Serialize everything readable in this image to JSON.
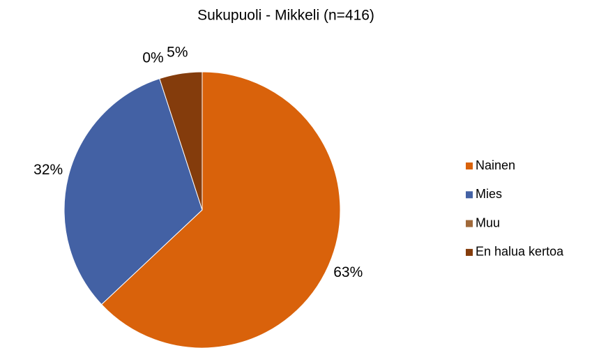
{
  "chart_data": {
    "type": "pie",
    "title": "Sukupuoli - Mikkeli (n=416)",
    "categories": [
      "Nainen",
      "Mies",
      "Muu",
      "En halua kertoa"
    ],
    "values": [
      63,
      32,
      0,
      5
    ],
    "value_labels": [
      "63%",
      "32%",
      "0%",
      "5%"
    ],
    "colors": [
      "#d9620b",
      "#4361a4",
      "#a0693a",
      "#843c0c"
    ],
    "legend": "right"
  }
}
